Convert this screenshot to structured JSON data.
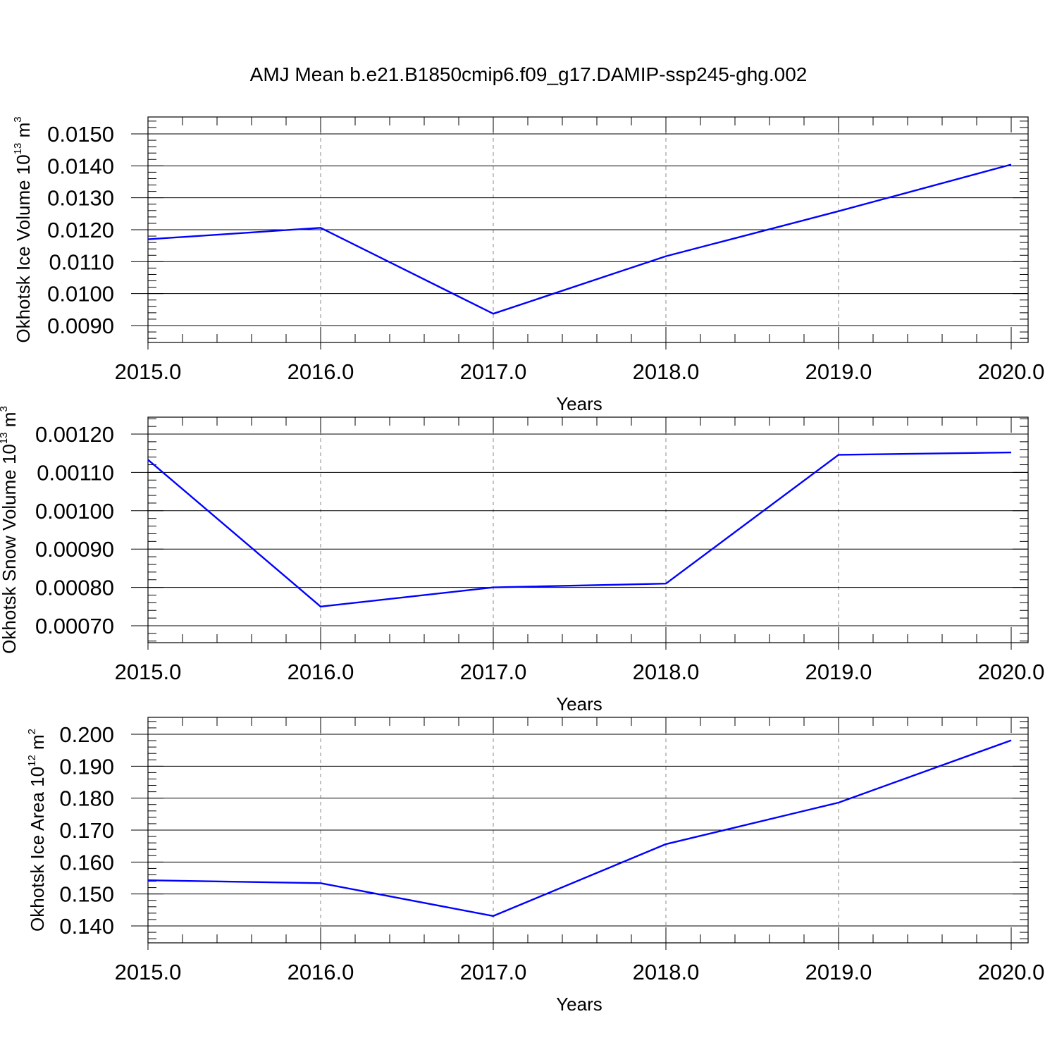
{
  "figure": {
    "title": "AMJ Mean b.e21.B1850cmip6.f09_g17.DAMIP-ssp245-ghg.002"
  },
  "chart_data": [
    {
      "type": "line",
      "name": "ice-volume",
      "xlabel": "Years",
      "ylabel": {
        "main": "Okhotsk Ice Volume 10",
        "exp": "13",
        "unit": " m",
        "unit_exp": "3"
      },
      "xlim": [
        2015,
        2020
      ],
      "ylim": [
        0.009,
        0.015
      ],
      "x_ticks": [
        2015,
        2016,
        2017,
        2018,
        2019,
        2020
      ],
      "x_tick_labels": [
        "2015.0",
        "2016.0",
        "2017.0",
        "2018.0",
        "2019.0",
        "2020.0"
      ],
      "y_ticks": [
        0.009,
        0.01,
        0.011,
        0.012,
        0.013,
        0.014,
        0.015
      ],
      "y_tick_labels": [
        "0.0090",
        "0.0100",
        "0.0110",
        "0.0120",
        "0.0130",
        "0.0140",
        "0.0150"
      ],
      "x_minor_step": 0.2,
      "y_minor_step": 0.0002,
      "grid": "x-dashed",
      "x": [
        2015,
        2016,
        2017,
        2018,
        2019,
        2020
      ],
      "series": [
        {
          "values": [
            0.0117,
            0.01206,
            0.00937,
            0.01117,
            0.01258,
            0.01404
          ],
          "color": "#0000ff"
        }
      ]
    },
    {
      "type": "line",
      "name": "snow-volume",
      "xlabel": "Years",
      "ylabel": {
        "main": "Okhotsk Snow Volume 10",
        "exp": "13",
        "unit": " m",
        "unit_exp": "3"
      },
      "xlim": [
        2015,
        2020
      ],
      "ylim": [
        0.0007,
        0.0012
      ],
      "x_ticks": [
        2015,
        2016,
        2017,
        2018,
        2019,
        2020
      ],
      "x_tick_labels": [
        "2015.0",
        "2016.0",
        "2017.0",
        "2018.0",
        "2019.0",
        "2020.0"
      ],
      "y_ticks": [
        0.0007,
        0.0008,
        0.0009,
        0.001,
        0.0011,
        0.0012
      ],
      "y_tick_labels": [
        "0.00070",
        "0.00080",
        "0.00090",
        "0.00100",
        "0.00110",
        "0.00120"
      ],
      "x_minor_step": 0.2,
      "y_minor_step": 2e-05,
      "grid": "x-dashed",
      "x": [
        2015,
        2016,
        2017,
        2018,
        2019,
        2020
      ],
      "series": [
        {
          "values": [
            0.001133,
            0.00075,
            0.0008,
            0.00081,
            0.001146,
            0.001152
          ],
          "color": "#0000ff"
        }
      ]
    },
    {
      "type": "line",
      "name": "ice-area",
      "xlabel": "Years",
      "ylabel": {
        "main": "Okhotsk Ice Area 10",
        "exp": "12",
        "unit": " m",
        "unit_exp": "2"
      },
      "xlim": [
        2015,
        2020
      ],
      "ylim": [
        0.14,
        0.2
      ],
      "x_ticks": [
        2015,
        2016,
        2017,
        2018,
        2019,
        2020
      ],
      "x_tick_labels": [
        "2015.0",
        "2016.0",
        "2017.0",
        "2018.0",
        "2019.0",
        "2020.0"
      ],
      "y_ticks": [
        0.14,
        0.15,
        0.16,
        0.17,
        0.18,
        0.19,
        0.2
      ],
      "y_tick_labels": [
        "0.140",
        "0.150",
        "0.160",
        "0.170",
        "0.180",
        "0.190",
        "0.200"
      ],
      "x_minor_step": 0.2,
      "y_minor_step": 0.002,
      "grid": "x-dashed",
      "x": [
        2015,
        2016,
        2017,
        2018,
        2019,
        2020
      ],
      "series": [
        {
          "values": [
            0.1543,
            0.1534,
            0.1431,
            0.1656,
            0.1786,
            0.1981
          ],
          "color": "#0000ff"
        }
      ]
    }
  ]
}
